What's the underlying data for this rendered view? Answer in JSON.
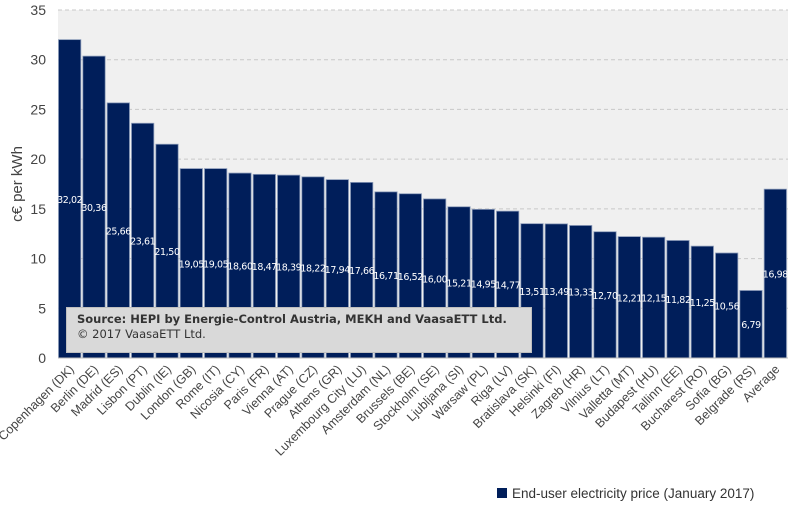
{
  "chart_data": {
    "type": "bar",
    "title": "",
    "xlabel": "",
    "ylabel": "c€ per kWh",
    "ylim": [
      0,
      35
    ],
    "yticks": [
      0,
      5,
      10,
      15,
      20,
      25,
      30,
      35
    ],
    "grid": true,
    "legend_placement": "bottom-right",
    "categories": [
      "Copenhagen (DK)",
      "Berlin (DE)",
      "Madrid (ES)",
      "Lisbon (PT)",
      "Dublin (IE)",
      "London (GB)",
      "Rome (IT)",
      "Nicosia (CY)",
      "Paris (FR)",
      "Vienna (AT)",
      "Prague (CZ)",
      "Athens (GR)",
      "Luxembourg City (LU)",
      "Amsterdam (NL)",
      "Brussels (BE)",
      "Stockholm (SE)",
      "Ljubljana (SI)",
      "Warsaw (PL)",
      "Riga (LV)",
      "Bratislava (SK)",
      "Helsinki (FI)",
      "Zagreb (HR)",
      "Vilnius (LT)",
      "Valletta (MT)",
      "Budapest (HU)",
      "Tallinn (EE)",
      "Bucharest (RO)",
      "Sofia (BG)",
      "Belgrade (RS)",
      "Average"
    ],
    "series": [
      {
        "name": "End-user electricity price (January 2017)",
        "color": "#001e5a",
        "values": [
          32.02,
          30.36,
          25.66,
          23.61,
          21.5,
          19.05,
          19.05,
          18.6,
          18.47,
          18.39,
          18.22,
          17.94,
          17.66,
          16.71,
          16.52,
          16.0,
          15.21,
          14.95,
          14.77,
          13.51,
          13.49,
          13.33,
          12.7,
          12.21,
          12.15,
          11.82,
          11.25,
          10.56,
          6.79,
          16.98
        ],
        "data_labels": [
          "32,02",
          "30,36",
          "25,66",
          "23,61",
          "21,50",
          "19,05",
          "19,05",
          "18,60",
          "18,47",
          "18,39",
          "18,22",
          "17,94",
          "17,66",
          "16,71",
          "16,52",
          "16,00",
          "15,21",
          "14,95",
          "14,77",
          "13,51",
          "13,49",
          "13,33",
          "12,70",
          "12,21",
          "12,15",
          "11,82",
          "11,25",
          "10,56",
          "6,79",
          "16,98"
        ]
      }
    ]
  },
  "source": {
    "line1": "Source: HEPI by Energie-Control Austria, MEKH and VaasaETT Ltd.",
    "line2": "© 2017 VaasaETT Ltd."
  }
}
